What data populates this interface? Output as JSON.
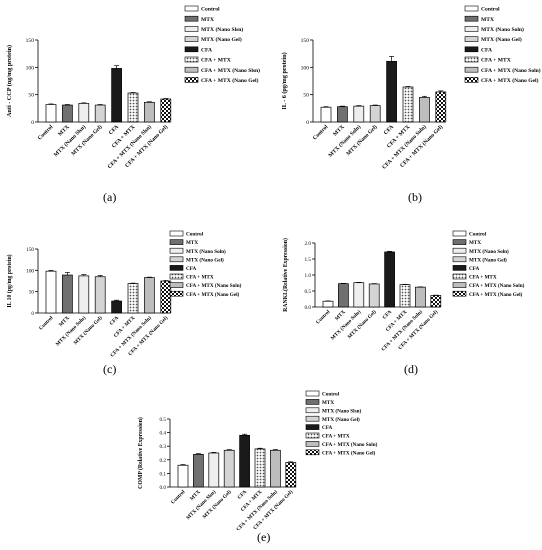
{
  "chart_data": [
    {
      "panel": "a",
      "type": "bar",
      "caption": "(a)",
      "ylabel": "Anti - CCP (ng/mg protein)",
      "ylim": [
        0,
        150
      ],
      "yticks": [
        0,
        50,
        100,
        150
      ],
      "categories": [
        "Control",
        "MTX",
        "MTX (Nano Slsn)",
        "MTX (Nano Gel)",
        "CFA",
        "CFA + MTX",
        "CFA + MTX (Nano Slsn)",
        "CFA + MTX (Nano Gel)"
      ],
      "legend": [
        "Control",
        "MTX",
        "MTX (Nano Slsn)",
        "MTX (Nano Gel)",
        "CFA",
        "CFA + MTX",
        "CFA + MTX (Nano Slsn)",
        "CFA + MTX (Nano Gel)"
      ],
      "values": [
        32,
        31,
        34,
        31,
        98,
        53,
        36,
        42
      ],
      "errors": [
        1,
        1,
        1,
        1,
        5,
        1,
        1,
        1
      ]
    },
    {
      "panel": "b",
      "type": "bar",
      "caption": "(b)",
      "ylabel": "IL - 6 (pg/mg protein)",
      "ylim": [
        0,
        150
      ],
      "yticks": [
        0,
        50,
        100,
        150
      ],
      "categories": [
        "Control",
        "MTX",
        "MTX (Nano Soln)",
        "MTX (Nano Gel)",
        "CFA",
        "CFA + MTX",
        "CFA + MTX (Nano Soln)",
        "CFA + MTX (Nano Gel)"
      ],
      "legend": [
        "Control",
        "MTX",
        "MTX (Nano Soln)",
        "MTX (Nano Gel)",
        "CFA",
        "CFA + MTX",
        "CFA + MTX (Nano Soln)",
        "CFA + MTX (Nano Gel)"
      ],
      "values": [
        27,
        28,
        29,
        30,
        111,
        64,
        45,
        55
      ],
      "errors": [
        1,
        1,
        1,
        1,
        9,
        1,
        2,
        2
      ]
    },
    {
      "panel": "c",
      "type": "bar",
      "caption": "(c)",
      "ylabel": "IL 10 (pg/mg protein)",
      "ylim": [
        0,
        150
      ],
      "yticks": [
        0,
        50,
        100,
        150
      ],
      "categories": [
        "Control",
        "MTX",
        "MTX (Nano Soln)",
        "MTX (Nano Gel)",
        "CFA",
        "CFA + MTX",
        "CFA + MTX (Nano Soln)",
        "CFA + MTX (Nano Gel)"
      ],
      "legend": [
        "Control",
        "MTX",
        "MTX (Nano Soln)",
        "MTX (Nano Gel)",
        "CFA",
        "CFA + MTX",
        "CFA + MTX (Nano Soln)",
        "CFA + MTX (Nano Gel)"
      ],
      "values": [
        98,
        89,
        87,
        85,
        28,
        69,
        83,
        75
      ],
      "errors": [
        2,
        6,
        3,
        3,
        2,
        1,
        1,
        1
      ]
    },
    {
      "panel": "d",
      "type": "bar",
      "caption": "(d)",
      "ylabel": "RANKL(Relative Expression)",
      "ylim": [
        0,
        2.0
      ],
      "yticks": [
        0.0,
        0.5,
        1.0,
        1.5,
        2.0
      ],
      "categories": [
        "Control",
        "MTX",
        "MTX (Nano Soln)",
        "MTX (Nano Gel)",
        "CFA",
        "CFA + MTX",
        "CFA + MTX (Nano Soln)",
        "CFA + MTX (Nano Gel)"
      ],
      "legend": [
        "Control",
        "MTX",
        "MTX (Nano Soln)",
        "MTX (Nano Gel)",
        "CFA",
        "CFA + MTX",
        "CFA + MTX (Nano Soln)",
        "CFA + MTX (Nano Gel)"
      ],
      "values": [
        0.18,
        0.73,
        0.76,
        0.72,
        1.72,
        0.7,
        0.62,
        0.36
      ],
      "errors": [
        0.01,
        0.01,
        0.01,
        0.01,
        0.02,
        0.01,
        0.01,
        0.01
      ]
    },
    {
      "panel": "e",
      "type": "bar",
      "caption": "(e)",
      "ylabel": "COMP (Relative Expression)",
      "ylim": [
        0,
        0.5
      ],
      "yticks": [
        0.0,
        0.1,
        0.2,
        0.3,
        0.4,
        0.5
      ],
      "categories": [
        "Control",
        "MTX",
        "MTX (Nano Slsn)",
        "MTX (Nano Gel)",
        "CFA",
        "CFA + MTX",
        "CFA + MTX (Nano Soln)",
        "CFA + MTX (Nano Gel)"
      ],
      "legend": [
        "Control",
        "MTX",
        "MTX (Nano Slsn)",
        "MTX (Nano Gel)",
        "CFA",
        "CFA + MTX",
        "CFA + MTX (Nano Soln)",
        "CFA + MTX (Nano Gel)"
      ],
      "values": [
        0.16,
        0.24,
        0.25,
        0.27,
        0.38,
        0.28,
        0.27,
        0.18
      ],
      "errors": [
        0.005,
        0.005,
        0.005,
        0.005,
        0.008,
        0.005,
        0.005,
        0.005
      ]
    }
  ]
}
